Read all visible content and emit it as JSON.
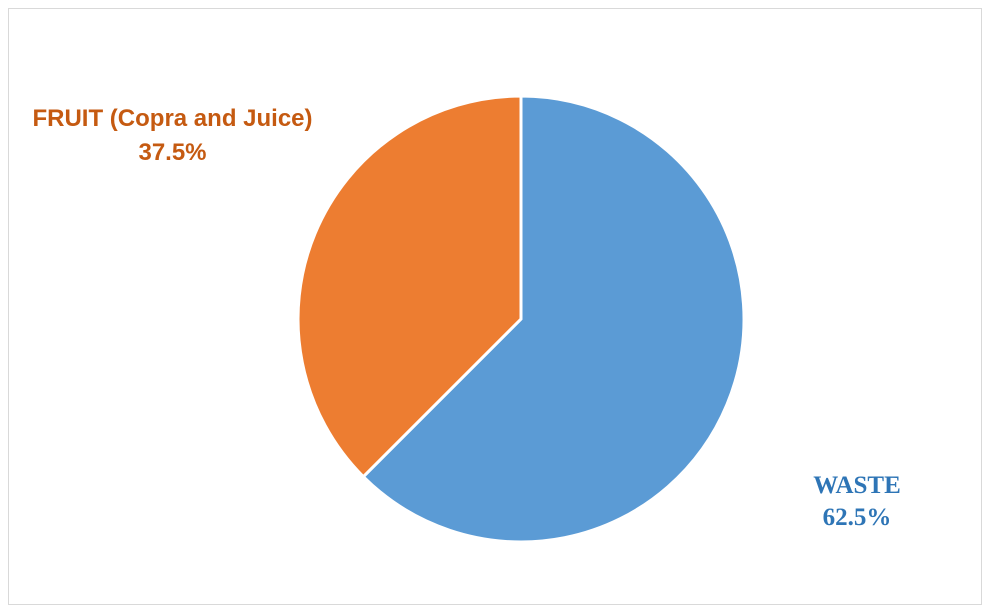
{
  "chart_data": {
    "type": "pie",
    "title": "",
    "slices": [
      {
        "label": "WASTE",
        "value": 62.5,
        "value_label": "62.5%",
        "color": "#5b9bd5"
      },
      {
        "label": "FRUIT (Copra and Juice)",
        "value": 37.5,
        "value_label": "37.5%",
        "color": "#ed7d31"
      }
    ],
    "start_angle_deg": 0,
    "direction": "clockwise",
    "legend": "none"
  }
}
